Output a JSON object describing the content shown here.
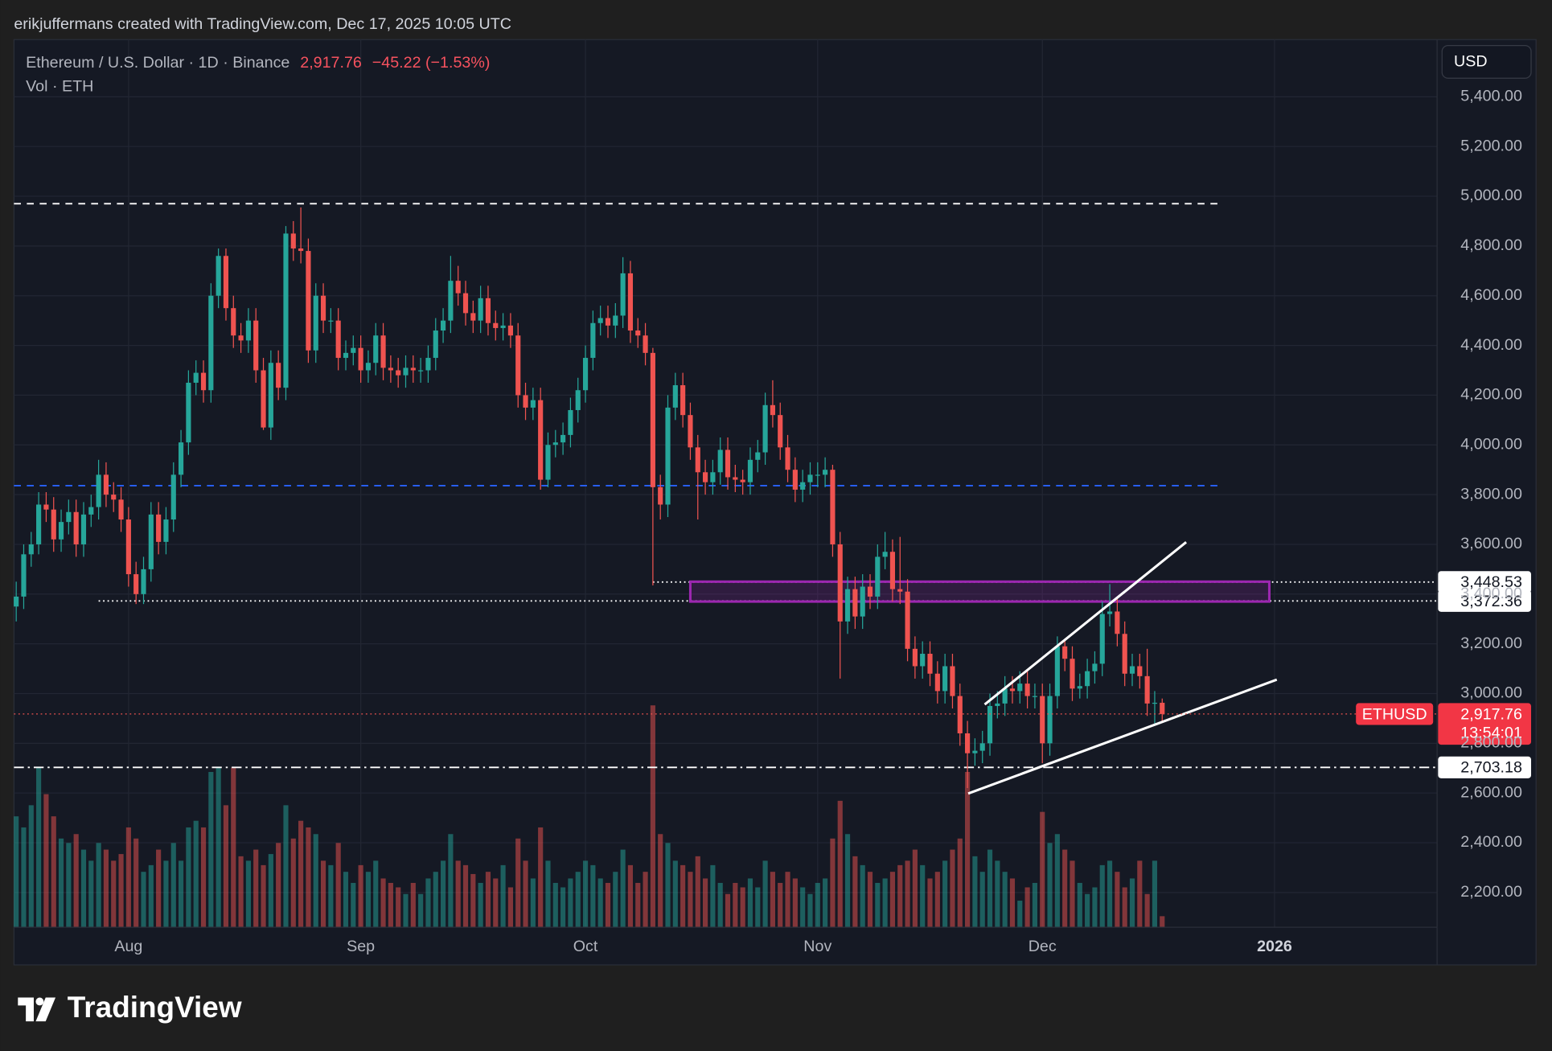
{
  "header": {
    "attribution": "erikjuffermans created with TradingView.com, Dec 17, 2025 10:05 UTC",
    "brand": "TradingView"
  },
  "chart_data": {
    "type": "candlestick",
    "symbol_title": "Ethereum / U.S. Dollar · 1D · Binance",
    "last_price": {
      "value": 2917.76,
      "label": "2,917.76"
    },
    "change_label": "−45.22 (−1.53%)",
    "volume_title": "Vol · ETH",
    "currency": "USD",
    "countdown": "13:54:01",
    "grid": true,
    "series": [
      {
        "name": "ETHUSD",
        "up_color": "#26a69a",
        "down_color": "#ef5350",
        "open": [
          3350,
          3390,
          3560,
          3600,
          3760,
          3740,
          3620,
          3690,
          3730,
          3600,
          3720,
          3750,
          3880,
          3800,
          3780,
          3700,
          3480,
          3400,
          3500,
          3720,
          3610,
          3700,
          3880,
          4010,
          4250,
          4290,
          4220,
          4600,
          4760,
          4550,
          4440,
          4420,
          4500,
          4300,
          4070,
          4330,
          4230,
          4850,
          4790,
          4780,
          4380,
          4600,
          4500,
          4500,
          4350,
          4370,
          4390,
          4300,
          4330,
          4440,
          4310,
          4300,
          4280,
          4310,
          4300,
          4300,
          4350,
          4460,
          4500,
          4660,
          4610,
          4530,
          4500,
          4590,
          4490,
          4470,
          4480,
          4440,
          4200,
          4150,
          4180,
          3860,
          4000,
          4010,
          4040,
          4140,
          4220,
          4350,
          4490,
          4510,
          4480,
          4520,
          4690,
          4460,
          4440,
          4370,
          3830,
          3760,
          4150,
          4240,
          4120,
          3990,
          3890,
          3850,
          3890,
          3980,
          3870,
          3860,
          3850,
          3940,
          3970,
          4160,
          4120,
          3990,
          3900,
          3820,
          3850,
          3880,
          3880,
          3900,
          3600,
          3290,
          3420,
          3310,
          3430,
          3390,
          3550,
          3570,
          3420,
          3410,
          3180,
          3110,
          3160,
          3080,
          3010,
          3110,
          2990,
          2840,
          2760,
          2770,
          2800,
          2950,
          2960,
          3020,
          3010,
          3040,
          2990,
          2990,
          2800,
          2990,
          3190,
          3140,
          3020,
          3030,
          3090,
          3120,
          3320,
          3330,
          3240,
          3080,
          3110,
          3070,
          2960,
          2963
        ],
        "high": [
          3450,
          3600,
          3650,
          3810,
          3810,
          3790,
          3740,
          3780,
          3780,
          3770,
          3800,
          3940,
          3930,
          3850,
          3830,
          3750,
          3530,
          3550,
          3770,
          3770,
          3750,
          3930,
          4060,
          4300,
          4340,
          4340,
          4650,
          4790,
          4790,
          4600,
          4490,
          4550,
          4550,
          4350,
          4380,
          4380,
          4880,
          4900,
          4955,
          4830,
          4650,
          4650,
          4550,
          4550,
          4420,
          4440,
          4440,
          4380,
          4490,
          4490,
          4360,
          4350,
          4360,
          4360,
          4350,
          4400,
          4510,
          4550,
          4760,
          4720,
          4660,
          4580,
          4640,
          4640,
          4540,
          4530,
          4530,
          4490,
          4250,
          4230,
          4230,
          4050,
          4060,
          4090,
          4190,
          4270,
          4400,
          4540,
          4560,
          4560,
          4570,
          4755,
          4740,
          4510,
          4490,
          4390,
          3880,
          4200,
          4290,
          4290,
          4170,
          4040,
          3940,
          3940,
          4030,
          4030,
          3920,
          3900,
          3990,
          4020,
          4210,
          4260,
          4170,
          4040,
          3950,
          3900,
          3930,
          3930,
          3950,
          3920,
          3650,
          3470,
          3470,
          3480,
          3480,
          3600,
          3650,
          3620,
          3630,
          3460,
          3230,
          3210,
          3210,
          3130,
          3160,
          3160,
          3040,
          2890,
          2820,
          2850,
          3000,
          3010,
          3070,
          3070,
          3090,
          3090,
          3040,
          3040,
          3040,
          3230,
          3220,
          3190,
          3080,
          3140,
          3170,
          3370,
          3440,
          3380,
          3290,
          3160,
          3160,
          3180,
          3010,
          2980
        ],
        "low": [
          3290,
          3340,
          3510,
          3560,
          3690,
          3570,
          3570,
          3640,
          3550,
          3550,
          3670,
          3700,
          3750,
          3730,
          3650,
          3430,
          3360,
          3360,
          3450,
          3560,
          3560,
          3650,
          3830,
          3960,
          4200,
          4170,
          4170,
          4550,
          4500,
          4390,
          4370,
          4370,
          4250,
          4060,
          4020,
          4180,
          4180,
          4740,
          4730,
          4330,
          4330,
          4450,
          4450,
          4300,
          4300,
          4320,
          4250,
          4250,
          4280,
          4260,
          4250,
          4230,
          4230,
          4250,
          4250,
          4250,
          4300,
          4410,
          4450,
          4560,
          4480,
          4450,
          4450,
          4440,
          4420,
          4420,
          4390,
          4150,
          4100,
          4100,
          3820,
          3830,
          3950,
          3960,
          3990,
          4090,
          4170,
          4300,
          4440,
          4430,
          4430,
          4470,
          4410,
          4390,
          4320,
          3435,
          3700,
          3710,
          4100,
          4070,
          3940,
          3700,
          3800,
          3800,
          3840,
          3820,
          3810,
          3800,
          3800,
          3890,
          3920,
          4070,
          3940,
          3850,
          3770,
          3770,
          3800,
          3830,
          3830,
          3550,
          3060,
          3240,
          3260,
          3260,
          3340,
          3340,
          3500,
          3370,
          3360,
          3130,
          3060,
          3060,
          3030,
          2960,
          2960,
          2940,
          2790,
          2620,
          2710,
          2720,
          2750,
          2900,
          2910,
          2960,
          2960,
          2940,
          2940,
          2720,
          2750,
          2940,
          3090,
          2970,
          2980,
          2980,
          3040,
          3070,
          3270,
          3190,
          3030,
          3030,
          3020,
          2910,
          2880,
          2890
        ],
        "close": [
          3390,
          3560,
          3600,
          3760,
          3740,
          3620,
          3690,
          3730,
          3600,
          3720,
          3750,
          3880,
          3800,
          3780,
          3700,
          3480,
          3400,
          3500,
          3720,
          3610,
          3700,
          3880,
          4010,
          4250,
          4290,
          4220,
          4600,
          4760,
          4550,
          4440,
          4420,
          4500,
          4300,
          4070,
          4330,
          4230,
          4850,
          4790,
          4780,
          4380,
          4600,
          4500,
          4500,
          4350,
          4370,
          4390,
          4300,
          4330,
          4440,
          4310,
          4300,
          4280,
          4310,
          4300,
          4300,
          4350,
          4460,
          4500,
          4660,
          4610,
          4530,
          4500,
          4590,
          4490,
          4470,
          4480,
          4440,
          4200,
          4150,
          4180,
          3860,
          4000,
          4010,
          4040,
          4140,
          4220,
          4350,
          4490,
          4510,
          4480,
          4520,
          4690,
          4460,
          4440,
          4370,
          3830,
          3760,
          4150,
          4240,
          4120,
          3990,
          3890,
          3850,
          3890,
          3980,
          3870,
          3860,
          3850,
          3940,
          3970,
          4160,
          4120,
          3990,
          3900,
          3820,
          3850,
          3880,
          3880,
          3900,
          3600,
          3290,
          3420,
          3310,
          3430,
          3390,
          3550,
          3570,
          3420,
          3410,
          3180,
          3110,
          3160,
          3080,
          3010,
          3110,
          2990,
          2840,
          2760,
          2770,
          2800,
          2950,
          2960,
          3020,
          3010,
          3040,
          2990,
          2990,
          2800,
          2990,
          3190,
          3140,
          3020,
          3030,
          3090,
          3120,
          3320,
          3330,
          3240,
          3080,
          3110,
          3070,
          2960,
          2963,
          2917.76
        ],
        "volume": [
          50,
          45,
          55,
          72,
          60,
          50,
          40,
          38,
          42,
          35,
          30,
          38,
          35,
          30,
          33,
          45,
          40,
          25,
          28,
          35,
          30,
          38,
          30,
          45,
          48,
          45,
          70,
          72,
          55,
          72,
          32,
          30,
          35,
          28,
          33,
          38,
          55,
          40,
          48,
          45,
          42,
          30,
          28,
          38,
          25,
          20,
          28,
          25,
          30,
          22,
          20,
          18,
          15,
          20,
          15,
          22,
          25,
          30,
          42,
          30,
          28,
          24,
          20,
          25,
          22,
          28,
          18,
          40,
          30,
          22,
          45,
          30,
          20,
          18,
          22,
          25,
          30,
          28,
          22,
          20,
          25,
          35,
          28,
          20,
          25,
          100,
          42,
          38,
          30,
          28,
          25,
          32,
          22,
          28,
          20,
          15,
          20,
          18,
          22,
          18,
          30,
          25,
          20,
          25,
          22,
          18,
          15,
          20,
          22,
          40,
          57,
          42,
          32,
          28,
          25,
          20,
          22,
          25,
          28,
          30,
          35,
          28,
          22,
          25,
          30,
          35,
          40,
          70,
          32,
          25,
          35,
          30,
          25,
          22,
          12,
          18,
          20,
          52,
          38,
          42,
          35,
          30,
          20,
          15,
          18,
          28,
          30,
          25,
          18,
          22,
          30,
          15,
          30,
          5
        ]
      }
    ],
    "xlim": [
      -0.3,
      189.7
    ],
    "xticks": [
      {
        "value": 15,
        "label": "Aug"
      },
      {
        "value": 46,
        "label": "Sep"
      },
      {
        "value": 76,
        "label": "Oct"
      },
      {
        "value": 107,
        "label": "Nov"
      },
      {
        "value": 137,
        "label": "Dec"
      },
      {
        "value": 168,
        "label": "2026"
      }
    ],
    "bold_xtick": 5,
    "ylim": [
      2060,
      5630
    ],
    "yticks": [
      {
        "value": 2200,
        "label": "2,200.00"
      },
      {
        "value": 2400,
        "label": "2,400.00"
      },
      {
        "value": 2600,
        "label": "2,600.00"
      },
      {
        "value": 2800,
        "label": "2,800.00"
      },
      {
        "value": 3000,
        "label": "3,000.00"
      },
      {
        "value": 3200,
        "label": "3,200.00"
      },
      {
        "value": 3400,
        "label": "3,400.00"
      },
      {
        "value": 3600,
        "label": "3,600.00"
      },
      {
        "value": 3800,
        "label": "3,800.00"
      },
      {
        "value": 4000,
        "label": "4,000.00"
      },
      {
        "value": 4200,
        "label": "4,200.00"
      },
      {
        "value": 4400,
        "label": "4,400.00"
      },
      {
        "value": 4600,
        "label": "4,600.00"
      },
      {
        "value": 4800,
        "label": "4,800.00"
      },
      {
        "value": 5000,
        "label": "5,000.00"
      },
      {
        "value": 5200,
        "label": "5,200.00"
      },
      {
        "value": 5400,
        "label": "5,400.00"
      }
    ],
    "volume_ylim": [
      0,
      400
    ],
    "levels": [
      {
        "value": 4970,
        "style": "dashed",
        "color": "#ffffff",
        "start": -0.3,
        "end": 161
      },
      {
        "value": 3836,
        "style": "dashed",
        "color": "#2962ff",
        "start": -0.3,
        "end": 161
      },
      {
        "value": 3448.53,
        "label": "3,448.53",
        "style": "dotted",
        "color": "#ffffff",
        "start": 85,
        "end": 189.7
      },
      {
        "value": 3372.36,
        "label": "3,372.36",
        "style": "dotted",
        "color": "#ffffff",
        "start": 11,
        "end": 189.7
      },
      {
        "value": 2703.18,
        "label": "2,703.18",
        "style": "dashdot",
        "color": "#ffffff",
        "start": -0.3,
        "end": 189.7
      }
    ],
    "zones": [
      {
        "low": 3370,
        "high": 3450,
        "start": 90,
        "end": 167.3,
        "color": "#9c27b0"
      }
    ],
    "trendlines": [
      {
        "x": [
          129.3,
          156.2
        ],
        "y": [
          2956,
          3609
        ],
        "color": "#ffffff"
      },
      {
        "x": [
          127.1,
          168.3
        ],
        "y": [
          2598,
          3056
        ],
        "color": "#ffffff"
      }
    ]
  }
}
